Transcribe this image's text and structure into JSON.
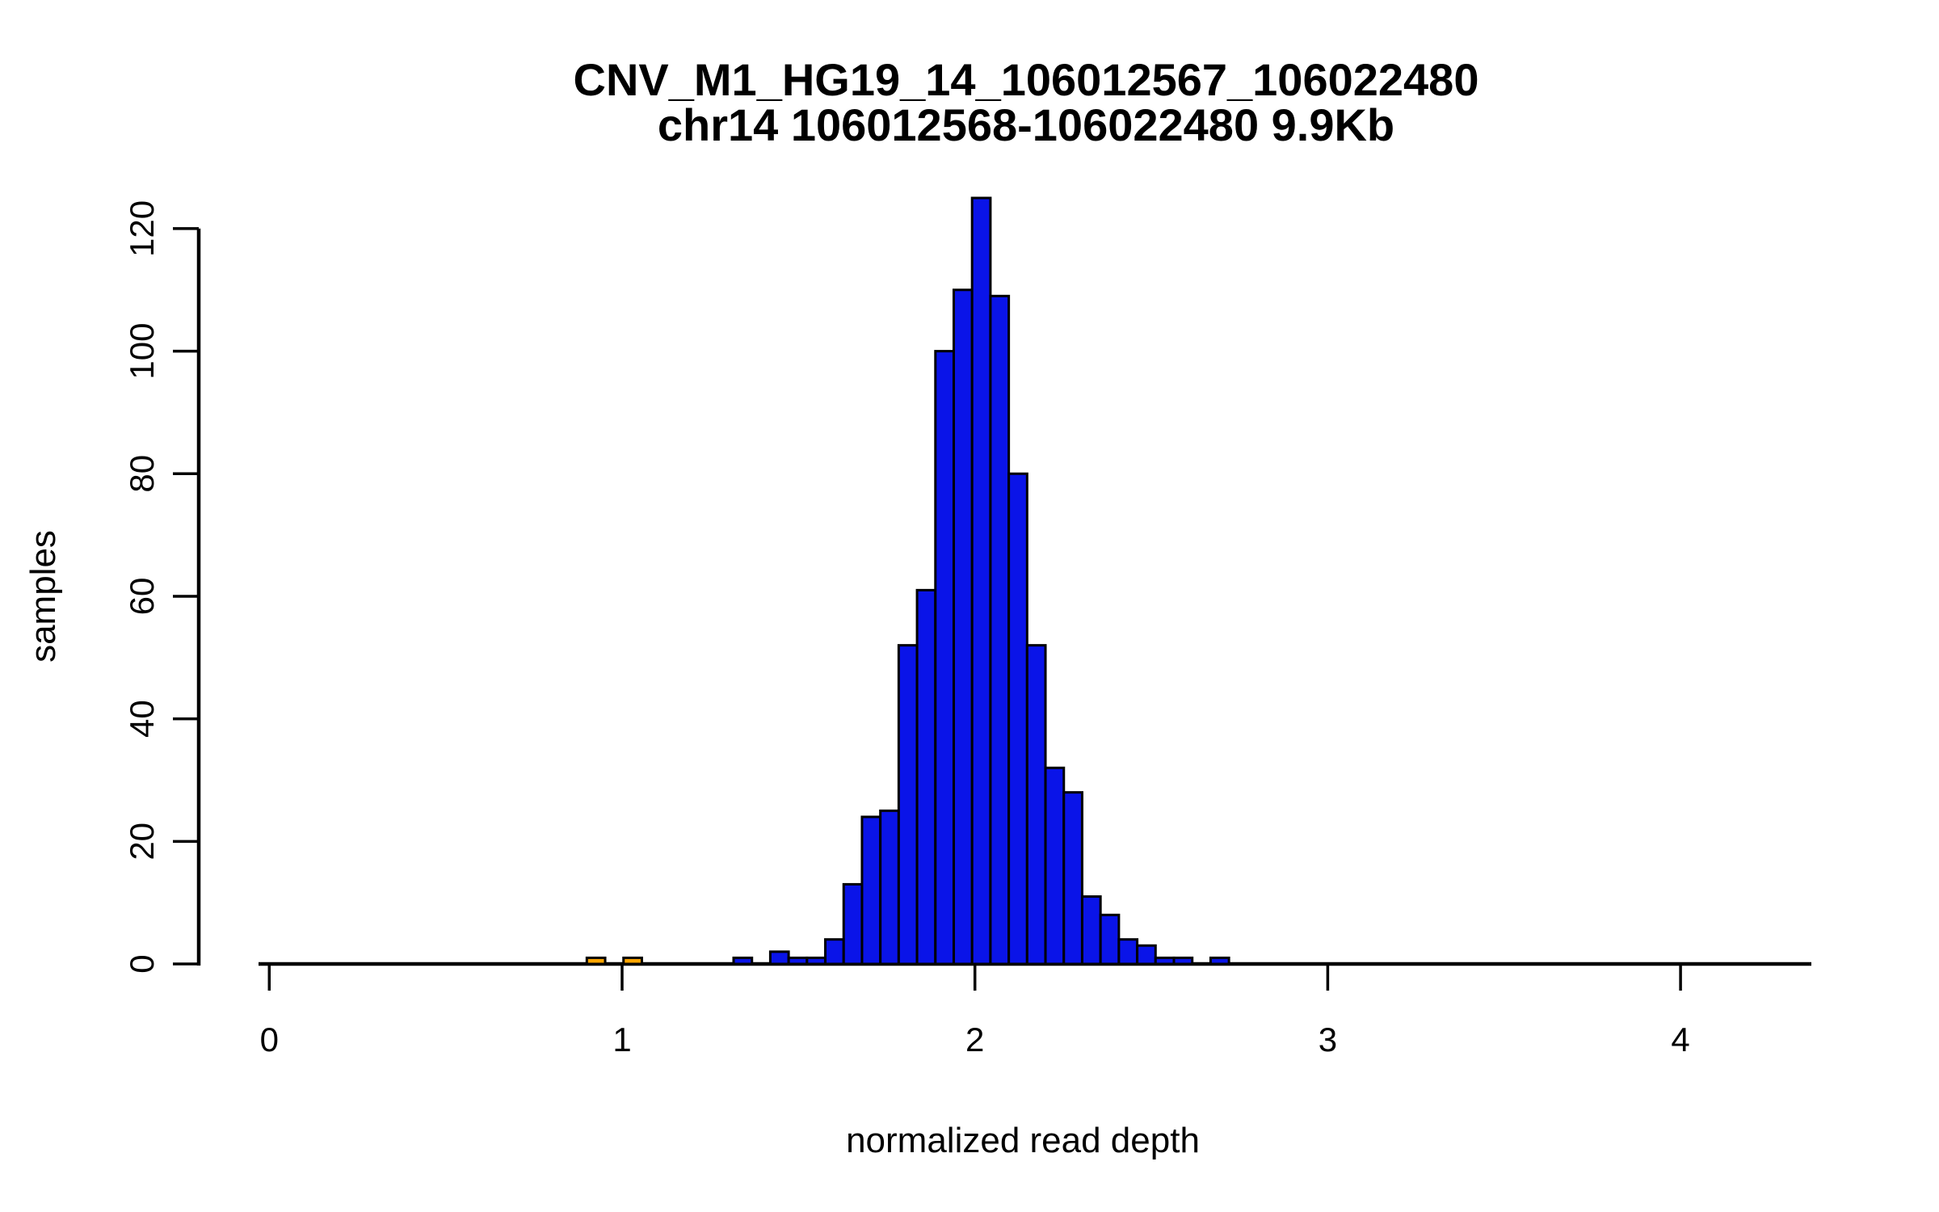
{
  "chart_data": {
    "type": "bar",
    "subtype": "histogram",
    "title": "CNV_M1_HG19_14_106012567_106022480",
    "subtitle": "chr14 106012568-106022480 9.9Kb",
    "xlabel": "normalized read depth",
    "ylabel": "samples",
    "x_ticks": [
      0,
      1,
      2,
      3,
      4
    ],
    "y_ticks": [
      0,
      20,
      40,
      60,
      80,
      100,
      120
    ],
    "xlim": [
      -0.03,
      4.37
    ],
    "ylim": [
      0,
      125
    ],
    "grid": false,
    "legend": "none",
    "bin_width": 0.052,
    "bars": [
      {
        "x0": 0.9,
        "count": 1,
        "color": "orange"
      },
      {
        "x0": 1.004,
        "count": 1,
        "color": "orange"
      },
      {
        "x0": 1.316,
        "count": 1,
        "color": "blue"
      },
      {
        "x0": 1.42,
        "count": 2,
        "color": "blue"
      },
      {
        "x0": 1.472,
        "count": 1,
        "color": "blue"
      },
      {
        "x0": 1.524,
        "count": 1,
        "color": "blue"
      },
      {
        "x0": 1.576,
        "count": 4,
        "color": "blue"
      },
      {
        "x0": 1.628,
        "count": 13,
        "color": "blue"
      },
      {
        "x0": 1.68,
        "count": 24,
        "color": "blue"
      },
      {
        "x0": 1.732,
        "count": 25,
        "color": "blue"
      },
      {
        "x0": 1.784,
        "count": 52,
        "color": "blue"
      },
      {
        "x0": 1.836,
        "count": 61,
        "color": "blue"
      },
      {
        "x0": 1.888,
        "count": 100,
        "color": "blue"
      },
      {
        "x0": 1.94,
        "count": 110,
        "color": "blue"
      },
      {
        "x0": 1.992,
        "count": 125,
        "color": "blue"
      },
      {
        "x0": 2.044,
        "count": 109,
        "color": "blue"
      },
      {
        "x0": 2.096,
        "count": 80,
        "color": "blue"
      },
      {
        "x0": 2.148,
        "count": 52,
        "color": "blue"
      },
      {
        "x0": 2.2,
        "count": 32,
        "color": "blue"
      },
      {
        "x0": 2.252,
        "count": 28,
        "color": "blue"
      },
      {
        "x0": 2.304,
        "count": 11,
        "color": "blue"
      },
      {
        "x0": 2.356,
        "count": 8,
        "color": "blue"
      },
      {
        "x0": 2.408,
        "count": 4,
        "color": "blue"
      },
      {
        "x0": 2.46,
        "count": 3,
        "color": "blue"
      },
      {
        "x0": 2.512,
        "count": 1,
        "color": "blue"
      },
      {
        "x0": 2.564,
        "count": 1,
        "color": "blue"
      },
      {
        "x0": 2.668,
        "count": 1,
        "color": "blue"
      }
    ],
    "colors": {
      "blue": "#0A14E8",
      "orange": "#FFA500",
      "axis": "#000000",
      "bar_border": "#000000",
      "background": "#FFFFFF"
    }
  }
}
